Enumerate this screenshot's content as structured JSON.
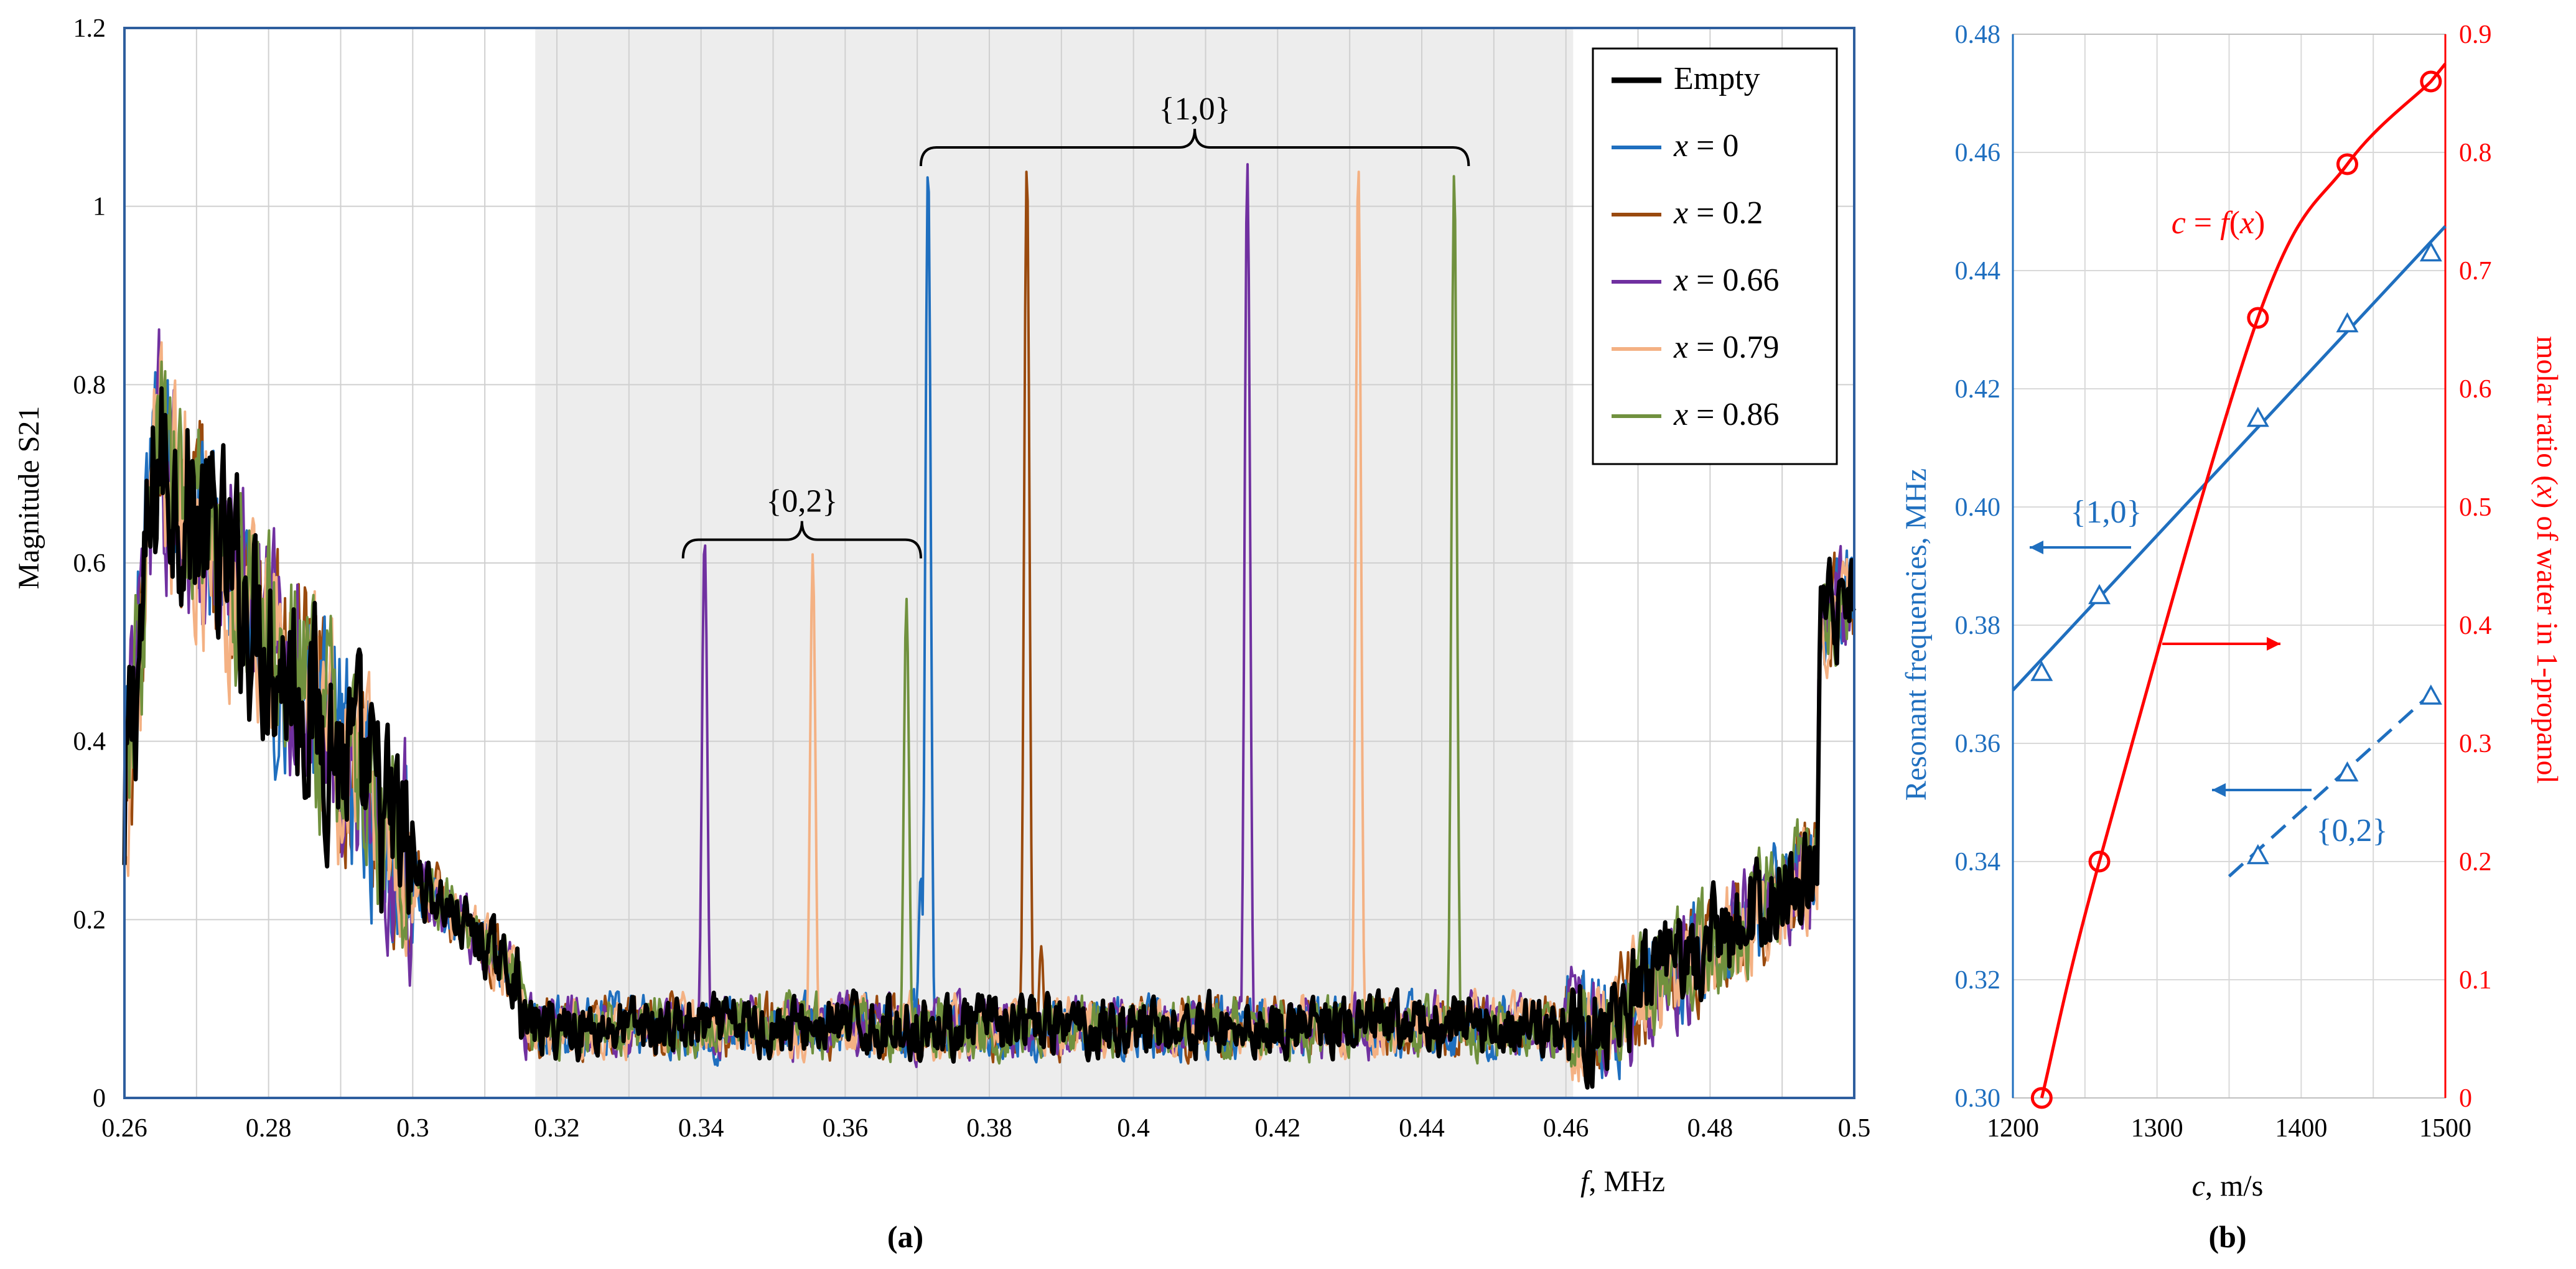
{
  "chart_data": [
    {
      "type": "line",
      "panel_label": "(a)",
      "xlabel_var": "f",
      "xlabel_unit": ", MHz",
      "ylabel": "Magnitude S21",
      "xlim": [
        0.26,
        0.5
      ],
      "ylim": [
        0,
        1.2
      ],
      "x_ticks": [
        "0.26",
        "0.28",
        "0.3",
        "0.32",
        "0.34",
        "0.36",
        "0.38",
        "0.4",
        "0.42",
        "0.44",
        "0.46",
        "0.48",
        "0.5"
      ],
      "y_ticks": [
        "0",
        "0.2",
        "0.4",
        "0.6",
        "0.8",
        "1",
        "1.2"
      ],
      "grid": true,
      "legend_position": "top-right",
      "shaded_region": [
        0.317,
        0.461
      ],
      "series": [
        {
          "name": "Empty",
          "legend_var": "",
          "legend_val": "Empty",
          "color": "#000000",
          "peaks": []
        },
        {
          "name": "x = 0",
          "legend_var": "x",
          "legend_val": " = 0",
          "color": "#1F6FBF",
          "peaks": [
            [
              0.3715,
              1.05
            ],
            [
              0.3705,
              0.25
            ]
          ]
        },
        {
          "name": "x = 0.2",
          "legend_var": "x",
          "legend_val": " = 0.2",
          "color": "#9A4A0E",
          "peaks": [
            [
              0.3852,
              1.05
            ],
            [
              0.3872,
              0.17
            ]
          ]
        },
        {
          "name": "x = 0.66",
          "legend_var": "x",
          "legend_val": " = 0.66",
          "color": "#7030A0",
          "peaks": [
            [
              0.3405,
              0.63
            ],
            [
              0.4158,
              1.05
            ]
          ]
        },
        {
          "name": "x = 0.79",
          "legend_var": "x",
          "legend_val": " = 0.79",
          "color": "#F4B183",
          "peaks": [
            [
              0.3555,
              0.61
            ],
            [
              0.4312,
              1.05
            ]
          ]
        },
        {
          "name": "x = 0.86",
          "legend_var": "x",
          "legend_val": " = 0.86",
          "color": "#70913E",
          "peaks": [
            [
              0.3685,
              0.56
            ],
            [
              0.4445,
              1.04
            ]
          ]
        }
      ],
      "annotations": [
        {
          "text": "{1,0}",
          "x_start": 0.3705,
          "x_end": 0.4465,
          "y": 1.08
        },
        {
          "text": "{0,2}",
          "x_start": 0.3375,
          "x_end": 0.3705,
          "y": 0.64
        }
      ]
    },
    {
      "type": "scatter",
      "panel_label": "(b)",
      "xlabel_var": "c",
      "xlabel_unit": ", m/s",
      "ylabel_left": "Resonant frequencies, MHz",
      "ylabel_right_parts": [
        "molar ratio (",
        "x",
        ") of water in 1-propanol"
      ],
      "xlim": [
        1200,
        1500
      ],
      "ylim_left": [
        0.3,
        0.48
      ],
      "ylim_right": [
        0,
        0.9
      ],
      "x_ticks": [
        "1200",
        "1300",
        "1400",
        "1500"
      ],
      "y_left_ticks": [
        "0.30",
        "0.32",
        "0.34",
        "0.36",
        "0.38",
        "0.40",
        "0.42",
        "0.44",
        "0.46",
        "0.48"
      ],
      "y_right_ticks": [
        "0",
        "0.1",
        "0.2",
        "0.3",
        "0.4",
        "0.5",
        "0.6",
        "0.7",
        "0.8",
        "0.9"
      ],
      "grid": true,
      "series": [
        {
          "name": "{1,0}",
          "axis": "left",
          "marker": "triangle",
          "color": "#1F6FBF",
          "x": [
            1220,
            1260,
            1370,
            1432,
            1490
          ],
          "y": [
            0.372,
            0.385,
            0.415,
            0.431,
            0.443
          ],
          "fit": [
            [
              1200,
              0.369
            ],
            [
              1500,
              0.4475
            ]
          ],
          "fit_style": "solid"
        },
        {
          "name": "{0,2}",
          "axis": "left",
          "marker": "triangle",
          "color": "#1F6FBF",
          "x": [
            1370,
            1432,
            1490
          ],
          "y": [
            0.341,
            0.355,
            0.368
          ],
          "fit": [
            [
              1350,
              0.3375
            ],
            [
              1495,
              0.3695
            ]
          ],
          "fit_style": "dashed"
        },
        {
          "name": "c = f(x)",
          "axis": "right",
          "marker": "circle",
          "color": "#FF0000",
          "x": [
            1220,
            1260,
            1370,
            1432,
            1490
          ],
          "y": [
            0,
            0.2,
            0.66,
            0.79,
            0.86
          ],
          "fit_style": "smooth"
        }
      ],
      "annotations": [
        {
          "text": "{1,0}",
          "color": "#1F6FBF"
        },
        {
          "text": "{0,2}",
          "color": "#1F6FBF"
        },
        {
          "text_var_c": "c",
          "text_mid": " = ",
          "text_var_f": "f",
          "text_paren_open": "(",
          "text_var_x": "x",
          "text_paren_close": ")",
          "color": "#FF0000"
        }
      ]
    }
  ]
}
